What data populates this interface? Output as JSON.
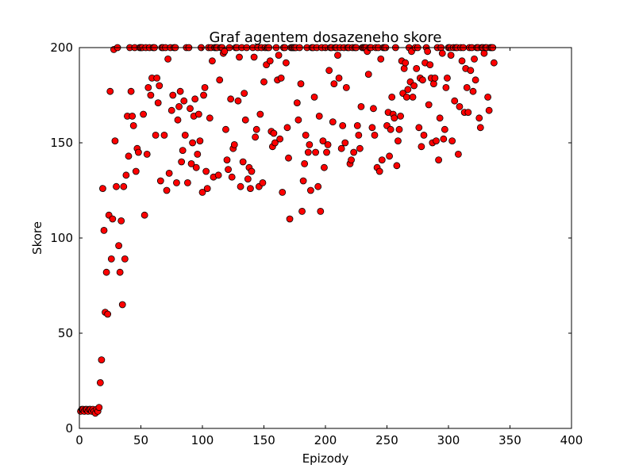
{
  "chart_data": {
    "type": "scatter",
    "title": "Graf agentem dosazeneho skore",
    "xlabel": "Epizody",
    "ylabel": "Skore",
    "xlim": [
      0,
      400
    ],
    "ylim": [
      0,
      200
    ],
    "x_ticks": [
      0,
      50,
      100,
      150,
      200,
      250,
      300,
      350,
      400
    ],
    "y_ticks": [
      0,
      50,
      100,
      150,
      200
    ],
    "grid": false,
    "legend": "none",
    "marker_color": "#ff0000",
    "marker_edge_color": "#000000",
    "series": [
      {
        "points": [
          [
            1,
            9
          ],
          [
            2,
            10
          ],
          [
            3,
            10
          ],
          [
            4,
            9
          ],
          [
            5,
            10
          ],
          [
            6,
            10
          ],
          [
            7,
            9
          ],
          [
            8,
            10
          ],
          [
            9,
            10
          ],
          [
            10,
            9
          ],
          [
            11,
            10
          ],
          [
            12,
            9
          ],
          [
            13,
            8
          ],
          [
            14,
            10
          ],
          [
            15,
            9
          ],
          [
            16,
            11
          ],
          [
            17,
            24
          ],
          [
            18,
            36
          ],
          [
            19,
            126
          ],
          [
            20,
            104
          ],
          [
            21,
            61
          ],
          [
            22,
            82
          ],
          [
            23,
            60
          ],
          [
            24,
            112
          ],
          [
            25,
            177
          ],
          [
            26,
            89
          ],
          [
            27,
            110
          ],
          [
            28,
            199
          ],
          [
            29,
            151
          ],
          [
            30,
            127
          ],
          [
            31,
            200
          ],
          [
            32,
            96
          ],
          [
            33,
            82
          ],
          [
            34,
            109
          ],
          [
            35,
            65
          ],
          [
            36,
            127
          ],
          [
            37,
            89
          ],
          [
            38,
            133
          ],
          [
            39,
            164
          ],
          [
            40,
            143
          ],
          [
            41,
            200
          ],
          [
            42,
            177
          ],
          [
            43,
            164
          ],
          [
            44,
            159
          ],
          [
            45,
            200
          ],
          [
            46,
            135
          ],
          [
            47,
            147
          ],
          [
            48,
            145
          ],
          [
            49,
            200
          ],
          [
            50,
            200
          ],
          [
            51,
            200
          ],
          [
            52,
            165
          ],
          [
            53,
            112
          ],
          [
            54,
            200
          ],
          [
            55,
            144
          ],
          [
            56,
            179
          ],
          [
            57,
            200
          ],
          [
            58,
            175
          ],
          [
            59,
            184
          ],
          [
            60,
            200
          ],
          [
            61,
            200
          ],
          [
            62,
            154
          ],
          [
            63,
            184
          ],
          [
            64,
            171
          ],
          [
            65,
            180
          ],
          [
            66,
            130
          ],
          [
            67,
            200
          ],
          [
            68,
            200
          ],
          [
            69,
            154
          ],
          [
            70,
            200
          ],
          [
            71,
            125
          ],
          [
            72,
            194
          ],
          [
            73,
            134
          ],
          [
            74,
            200
          ],
          [
            75,
            167
          ],
          [
            76,
            175
          ],
          [
            77,
            200
          ],
          [
            78,
            200
          ],
          [
            79,
            129
          ],
          [
            80,
            162
          ],
          [
            81,
            169
          ],
          [
            82,
            177
          ],
          [
            83,
            140
          ],
          [
            84,
            146
          ],
          [
            85,
            172
          ],
          [
            86,
            154
          ],
          [
            87,
            200
          ],
          [
            88,
            129
          ],
          [
            89,
            200
          ],
          [
            90,
            168
          ],
          [
            91,
            139
          ],
          [
            92,
            150
          ],
          [
            93,
            164
          ],
          [
            94,
            173
          ],
          [
            95,
            137
          ],
          [
            96,
            144
          ],
          [
            97,
            165
          ],
          [
            98,
            151
          ],
          [
            99,
            200
          ],
          [
            100,
            124
          ],
          [
            101,
            175
          ],
          [
            102,
            179
          ],
          [
            103,
            135
          ],
          [
            104,
            126
          ],
          [
            105,
            200
          ],
          [
            106,
            163
          ],
          [
            107,
            200
          ],
          [
            108,
            193
          ],
          [
            109,
            132
          ],
          [
            110,
            200
          ],
          [
            111,
            200
          ],
          [
            112,
            200
          ],
          [
            113,
            133
          ],
          [
            114,
            183
          ],
          [
            115,
            200
          ],
          [
            116,
            200
          ],
          [
            117,
            197
          ],
          [
            118,
            198
          ],
          [
            119,
            157
          ],
          [
            120,
            141
          ],
          [
            121,
            136
          ],
          [
            122,
            200
          ],
          [
            123,
            173
          ],
          [
            124,
            132
          ],
          [
            125,
            147
          ],
          [
            126,
            149
          ],
          [
            127,
            200
          ],
          [
            128,
            200
          ],
          [
            129,
            172
          ],
          [
            130,
            195
          ],
          [
            131,
            127
          ],
          [
            132,
            200
          ],
          [
            133,
            140
          ],
          [
            134,
            176
          ],
          [
            135,
            162
          ],
          [
            136,
            200
          ],
          [
            137,
            131
          ],
          [
            138,
            137
          ],
          [
            139,
            126
          ],
          [
            140,
            135
          ],
          [
            141,
            200
          ],
          [
            142,
            195
          ],
          [
            143,
            153
          ],
          [
            144,
            157
          ],
          [
            145,
            200
          ],
          [
            146,
            127
          ],
          [
            147,
            165
          ],
          [
            148,
            200
          ],
          [
            149,
            129
          ],
          [
            150,
            182
          ],
          [
            151,
            200
          ],
          [
            152,
            191
          ],
          [
            153,
            200
          ],
          [
            154,
            200
          ],
          [
            155,
            193
          ],
          [
            156,
            156
          ],
          [
            157,
            148
          ],
          [
            158,
            155
          ],
          [
            159,
            150
          ],
          [
            160,
            200
          ],
          [
            161,
            183
          ],
          [
            162,
            196
          ],
          [
            163,
            152
          ],
          [
            164,
            184
          ],
          [
            165,
            124
          ],
          [
            166,
            200
          ],
          [
            167,
            200
          ],
          [
            168,
            192
          ],
          [
            169,
            158
          ],
          [
            170,
            142
          ],
          [
            171,
            110
          ],
          [
            172,
            200
          ],
          [
            173,
            200
          ],
          [
            174,
            200
          ],
          [
            175,
            200
          ],
          [
            176,
            200
          ],
          [
            177,
            171
          ],
          [
            178,
            162
          ],
          [
            179,
            200
          ],
          [
            180,
            181
          ],
          [
            181,
            114
          ],
          [
            182,
            130
          ],
          [
            183,
            139
          ],
          [
            184,
            154
          ],
          [
            185,
            200
          ],
          [
            186,
            145
          ],
          [
            187,
            149
          ],
          [
            188,
            125
          ],
          [
            189,
            200
          ],
          [
            190,
            200
          ],
          [
            191,
            174
          ],
          [
            192,
            145
          ],
          [
            193,
            200
          ],
          [
            194,
            127
          ],
          [
            195,
            164
          ],
          [
            196,
            114
          ],
          [
            197,
            200
          ],
          [
            198,
            151
          ],
          [
            199,
            137
          ],
          [
            200,
            200
          ],
          [
            201,
            145
          ],
          [
            202,
            149
          ],
          [
            203,
            188
          ],
          [
            204,
            200
          ],
          [
            205,
            200
          ],
          [
            206,
            161
          ],
          [
            207,
            181
          ],
          [
            208,
            200
          ],
          [
            209,
            200
          ],
          [
            210,
            196
          ],
          [
            211,
            184
          ],
          [
            212,
            200
          ],
          [
            213,
            147
          ],
          [
            214,
            159
          ],
          [
            215,
            200
          ],
          [
            216,
            150
          ],
          [
            217,
            179
          ],
          [
            218,
            200
          ],
          [
            219,
            200
          ],
          [
            220,
            139
          ],
          [
            221,
            141
          ],
          [
            222,
            200
          ],
          [
            223,
            145
          ],
          [
            224,
            200
          ],
          [
            225,
            200
          ],
          [
            226,
            159
          ],
          [
            227,
            154
          ],
          [
            228,
            147
          ],
          [
            229,
            169
          ],
          [
            230,
            200
          ],
          [
            231,
            200
          ],
          [
            232,
            200
          ],
          [
            233,
            200
          ],
          [
            234,
            198
          ],
          [
            235,
            186
          ],
          [
            236,
            200
          ],
          [
            237,
            200
          ],
          [
            238,
            158
          ],
          [
            239,
            168
          ],
          [
            240,
            154
          ],
          [
            241,
            200
          ],
          [
            242,
            137
          ],
          [
            243,
            200
          ],
          [
            244,
            135
          ],
          [
            245,
            194
          ],
          [
            246,
            141
          ],
          [
            247,
            200
          ],
          [
            248,
            200
          ],
          [
            249,
            200
          ],
          [
            250,
            159
          ],
          [
            251,
            166
          ],
          [
            252,
            143
          ],
          [
            253,
            157
          ],
          [
            254,
            174
          ],
          [
            255,
            165
          ],
          [
            256,
            163
          ],
          [
            257,
            200
          ],
          [
            258,
            138
          ],
          [
            259,
            151
          ],
          [
            260,
            157
          ],
          [
            261,
            164
          ],
          [
            262,
            193
          ],
          [
            263,
            176
          ],
          [
            264,
            189
          ],
          [
            265,
            192
          ],
          [
            266,
            174
          ],
          [
            267,
            178
          ],
          [
            268,
            200
          ],
          [
            269,
            182
          ],
          [
            270,
            198
          ],
          [
            271,
            174
          ],
          [
            272,
            180
          ],
          [
            273,
            200
          ],
          [
            274,
            189
          ],
          [
            275,
            200
          ],
          [
            276,
            158
          ],
          [
            277,
            184
          ],
          [
            278,
            148
          ],
          [
            279,
            183
          ],
          [
            280,
            154
          ],
          [
            281,
            192
          ],
          [
            282,
            200
          ],
          [
            283,
            198
          ],
          [
            284,
            170
          ],
          [
            285,
            191
          ],
          [
            286,
            184
          ],
          [
            287,
            150
          ],
          [
            288,
            181
          ],
          [
            289,
            184
          ],
          [
            290,
            151
          ],
          [
            291,
            200
          ],
          [
            292,
            141
          ],
          [
            293,
            163
          ],
          [
            294,
            200
          ],
          [
            295,
            197
          ],
          [
            296,
            152
          ],
          [
            297,
            157
          ],
          [
            298,
            179
          ],
          [
            299,
            184
          ],
          [
            300,
            200
          ],
          [
            301,
            200
          ],
          [
            302,
            196
          ],
          [
            303,
            151
          ],
          [
            304,
            200
          ],
          [
            305,
            172
          ],
          [
            306,
            200
          ],
          [
            307,
            200
          ],
          [
            308,
            144
          ],
          [
            309,
            169
          ],
          [
            310,
            200
          ],
          [
            311,
            193
          ],
          [
            312,
            200
          ],
          [
            313,
            166
          ],
          [
            314,
            189
          ],
          [
            315,
            179
          ],
          [
            316,
            166
          ],
          [
            317,
            200
          ],
          [
            318,
            188
          ],
          [
            319,
            200
          ],
          [
            320,
            177
          ],
          [
            321,
            194
          ],
          [
            322,
            183
          ],
          [
            323,
            200
          ],
          [
            324,
            200
          ],
          [
            325,
            163
          ],
          [
            326,
            158
          ],
          [
            327,
            200
          ],
          [
            328,
            200
          ],
          [
            329,
            197
          ],
          [
            330,
            200
          ],
          [
            331,
            200
          ],
          [
            332,
            174
          ],
          [
            333,
            167
          ],
          [
            334,
            200
          ],
          [
            335,
            200
          ],
          [
            336,
            200
          ],
          [
            337,
            192
          ]
        ]
      }
    ]
  }
}
